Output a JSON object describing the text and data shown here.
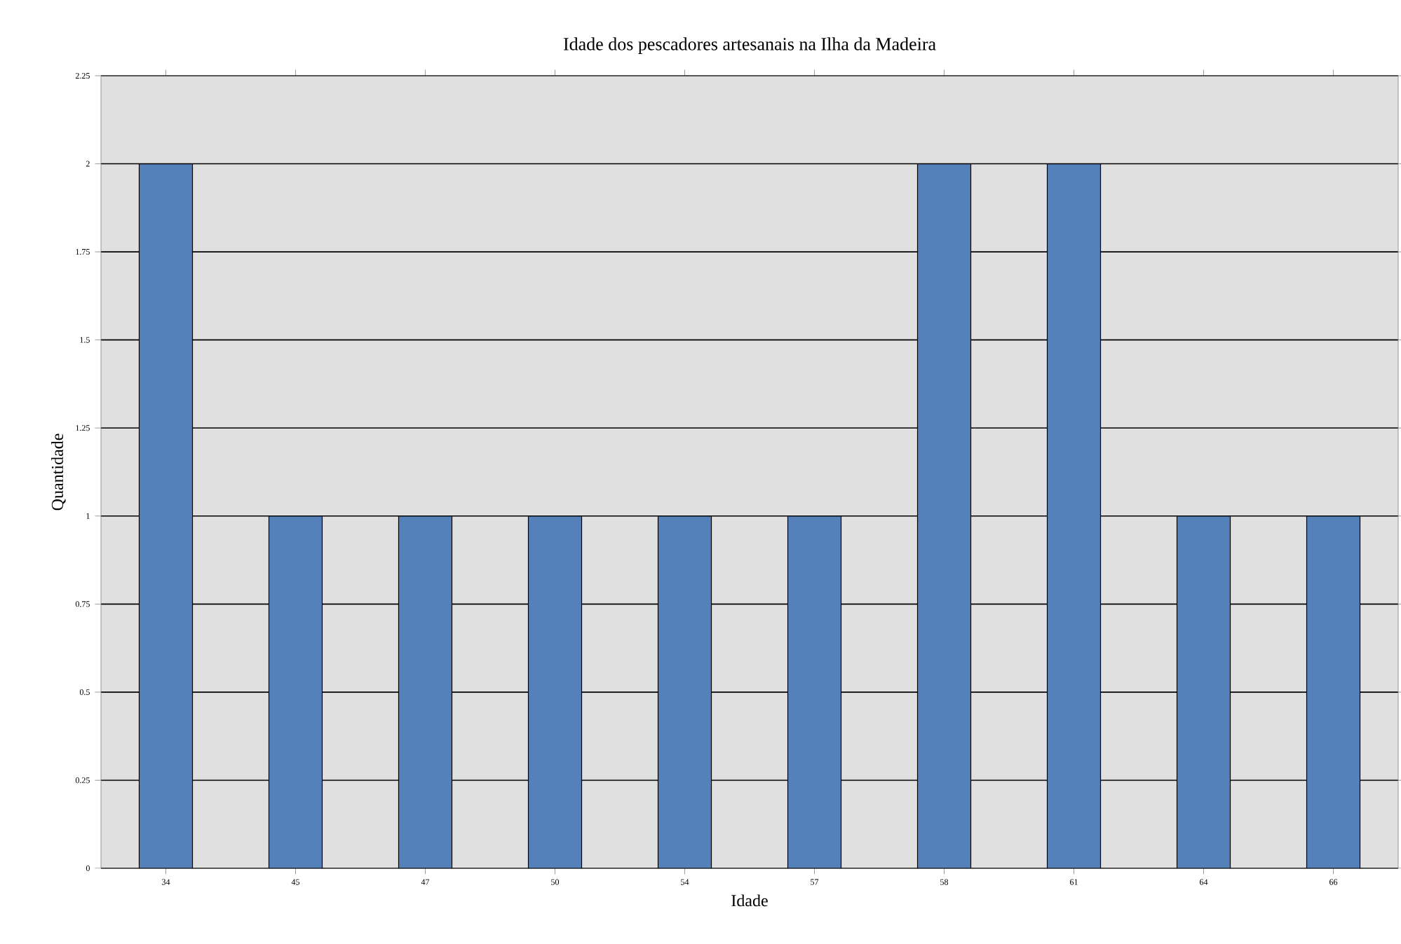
{
  "chart_data": {
    "type": "bar",
    "title": "Idade dos pescadores artesanais na Ilha da Madeira",
    "xlabel": "Idade",
    "ylabel": "Quantidade",
    "categories": [
      "34",
      "45",
      "47",
      "50",
      "54",
      "57",
      "58",
      "61",
      "64",
      "66"
    ],
    "values": [
      2,
      1,
      1,
      1,
      1,
      1,
      2,
      2,
      1,
      1
    ],
    "color": "#5581bb",
    "ylim": [
      0,
      2.25
    ],
    "yticks": [
      0,
      0.25,
      0.5,
      0.75,
      1,
      1.25,
      1.5,
      1.75,
      2,
      2.25
    ],
    "grid": "y"
  }
}
